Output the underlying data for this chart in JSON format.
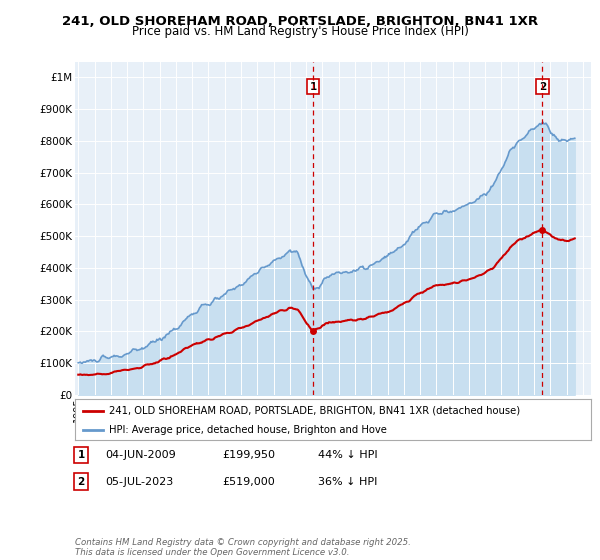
{
  "title": "241, OLD SHOREHAM ROAD, PORTSLADE, BRIGHTON, BN41 1XR",
  "subtitle": "Price paid vs. HM Land Registry's House Price Index (HPI)",
  "ylabel_ticks": [
    "£0",
    "£100K",
    "£200K",
    "£300K",
    "£400K",
    "£500K",
    "£600K",
    "£700K",
    "£800K",
    "£900K",
    "£1M"
  ],
  "ytick_values": [
    0,
    100000,
    200000,
    300000,
    400000,
    500000,
    600000,
    700000,
    800000,
    900000,
    1000000
  ],
  "ylim": [
    0,
    1050000
  ],
  "xlim_start": 1994.8,
  "xlim_end": 2026.5,
  "background_color": "#ffffff",
  "plot_bg_color": "#e8f0f8",
  "grid_color": "#ffffff",
  "hpi_line_color": "#6699cc",
  "hpi_fill_color": "#c8dff0",
  "price_color": "#cc0000",
  "transaction1_date": 2009.42,
  "transaction1_price": 199950,
  "transaction2_date": 2023.51,
  "transaction2_price": 519000,
  "legend_label_price": "241, OLD SHOREHAM ROAD, PORTSLADE, BRIGHTON, BN41 1XR (detached house)",
  "legend_label_hpi": "HPI: Average price, detached house, Brighton and Hove",
  "footnote": "Contains HM Land Registry data © Crown copyright and database right 2025.\nThis data is licensed under the Open Government Licence v3.0.",
  "table_rows": [
    {
      "num": "1",
      "date": "04-JUN-2009",
      "price": "£199,950",
      "note": "44% ↓ HPI"
    },
    {
      "num": "2",
      "date": "05-JUL-2023",
      "price": "£519,000",
      "note": "36% ↓ HPI"
    }
  ]
}
